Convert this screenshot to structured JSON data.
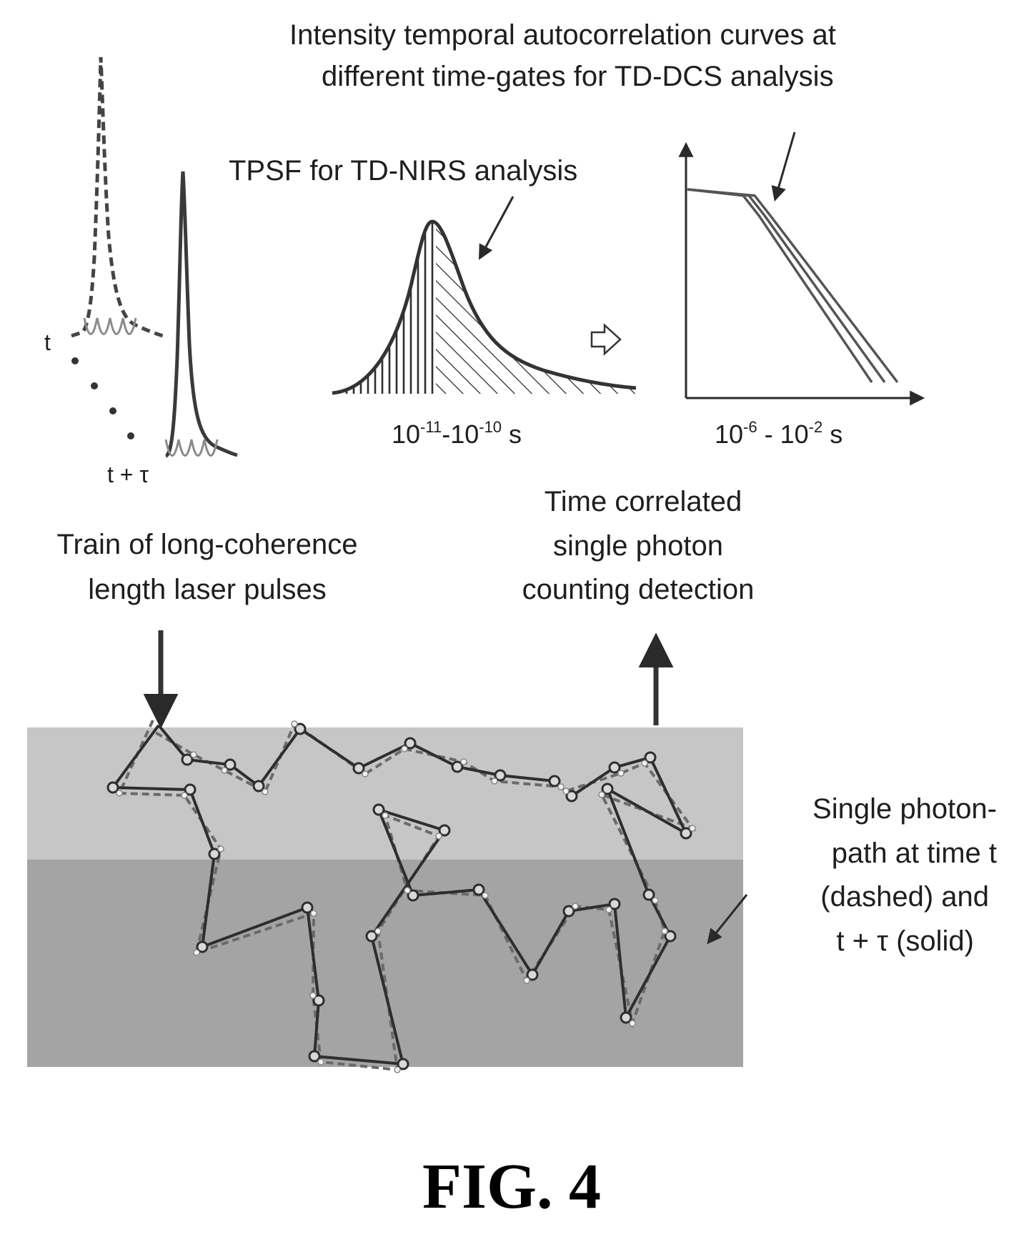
{
  "figure": {
    "label": "FIG. 4",
    "colors": {
      "ink": "#3a3a3a",
      "tissue_upper": "#c6c6c6",
      "tissue_lower": "#a4a4a4",
      "wave": "#8a8a8a"
    }
  },
  "pulses": {
    "label_t": "t",
    "label_t_tau": "t + τ",
    "caption_line1": "Train of long-coherence",
    "caption_line2": "length laser pulses"
  },
  "tpsf": {
    "title": "TPSF for TD-NIRS analysis",
    "range": "10-11-10-10 s"
  },
  "autocorrelation": {
    "title_line1": "Intensity temporal autocorrelation curves at",
    "title_line2": "different time-gates for TD-DCS analysis",
    "range": "10-6 - 10-2 s",
    "chart_data": {
      "type": "line",
      "xscale": "log",
      "series": [
        {
          "values": [
            1.0,
            0.97,
            0.55,
            0.0
          ]
        },
        {
          "values": [
            1.0,
            0.97,
            0.5,
            0.0
          ]
        },
        {
          "values": [
            1.0,
            0.97,
            0.45,
            0.0
          ]
        }
      ]
    }
  },
  "detection": {
    "line1": "Time correlated",
    "line2": "single photon",
    "line3": "counting detection"
  },
  "photon_path": {
    "caption_line1": "Single photon-",
    "caption_line2": "path at time t",
    "caption_line3": "(dashed) and",
    "caption_line4": "t + τ (solid)"
  }
}
